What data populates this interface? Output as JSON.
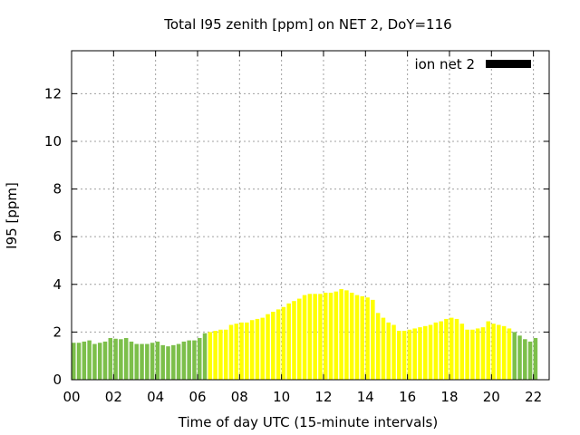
{
  "chart_data": {
    "type": "bar",
    "title": "Total I95 zenith [ppm] on NET 2, DoY=116",
    "xlabel": "Time of day UTC (15-minute intervals)",
    "ylabel": "I95 [ppm]",
    "xlim": [
      0,
      22.75
    ],
    "ylim": [
      0,
      13.8
    ],
    "x_ticks": [
      "00",
      "02",
      "04",
      "06",
      "08",
      "10",
      "12",
      "14",
      "16",
      "18",
      "20",
      "22"
    ],
    "x_tick_values": [
      0,
      2,
      4,
      6,
      8,
      10,
      12,
      14,
      16,
      18,
      20,
      22
    ],
    "y_ticks": [
      "0",
      "2",
      "4",
      "6",
      "8",
      "10",
      "12"
    ],
    "y_tick_values": [
      0,
      2,
      4,
      6,
      8,
      10,
      12
    ],
    "grid": true,
    "legend": {
      "label": "ion net 2",
      "color": "#000000",
      "placement": "top-right"
    },
    "bar_interval_hours": 0.25,
    "colors": {
      "night": "#7cbf4a",
      "day": "#ffff00"
    },
    "series": [
      {
        "values": [
          1.55,
          1.55,
          1.6,
          1.65,
          1.5,
          1.55,
          1.6,
          1.75,
          1.72,
          1.7,
          1.75,
          1.6,
          1.5,
          1.5,
          1.5,
          1.55,
          1.6,
          1.45,
          1.4,
          1.45,
          1.5,
          1.6,
          1.65,
          1.65,
          1.75,
          1.95,
          2.0,
          2.05,
          2.1,
          2.1,
          2.3,
          2.35,
          2.4,
          2.4,
          2.5,
          2.55,
          2.6,
          2.75,
          2.85,
          2.95,
          3.05,
          3.2,
          3.3,
          3.4,
          3.55,
          3.6,
          3.6,
          3.6,
          3.65,
          3.65,
          3.7,
          3.8,
          3.75,
          3.65,
          3.55,
          3.5,
          3.45,
          3.35,
          2.8,
          2.6,
          2.4,
          2.3,
          2.05,
          2.05,
          2.1,
          2.15,
          2.2,
          2.25,
          2.3,
          2.4,
          2.45,
          2.55,
          2.6,
          2.55,
          2.35,
          2.1,
          2.1,
          2.15,
          2.2,
          2.45,
          2.35,
          2.3,
          2.25,
          2.15,
          2.0,
          1.85,
          1.7,
          1.6,
          1.75
        ],
        "colors": [
          "night",
          "night",
          "night",
          "night",
          "night",
          "night",
          "night",
          "night",
          "night",
          "night",
          "night",
          "night",
          "night",
          "night",
          "night",
          "night",
          "night",
          "night",
          "night",
          "night",
          "night",
          "night",
          "night",
          "night",
          "night",
          "night",
          "day",
          "day",
          "day",
          "day",
          "day",
          "day",
          "day",
          "day",
          "day",
          "day",
          "day",
          "day",
          "day",
          "day",
          "day",
          "day",
          "day",
          "day",
          "day",
          "day",
          "day",
          "day",
          "day",
          "day",
          "day",
          "day",
          "day",
          "day",
          "day",
          "day",
          "day",
          "day",
          "day",
          "day",
          "day",
          "day",
          "day",
          "day",
          "day",
          "day",
          "day",
          "day",
          "day",
          "day",
          "day",
          "day",
          "day",
          "day",
          "day",
          "day",
          "day",
          "day",
          "day",
          "day",
          "day",
          "day",
          "day",
          "day",
          "night",
          "night",
          "night",
          "night",
          "night"
        ]
      }
    ]
  }
}
